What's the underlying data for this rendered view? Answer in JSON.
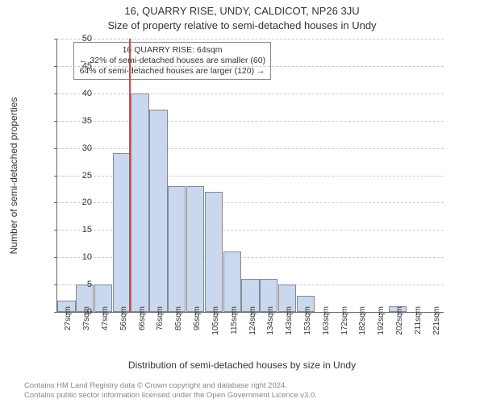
{
  "titles": {
    "line1": "16, QUARRY RISE, UNDY, CALDICOT, NP26 3JU",
    "line2": "Size of property relative to semi-detached houses in Undy"
  },
  "axes": {
    "ylabel": "Number of semi-detached properties",
    "xlabel": "Distribution of semi-detached houses by size in Undy",
    "ylim": [
      0,
      50
    ],
    "yticks": [
      0,
      5,
      10,
      15,
      20,
      25,
      30,
      35,
      40,
      45,
      50
    ],
    "grid_color": "#cccccc",
    "axis_color": "#666666"
  },
  "chart": {
    "type": "histogram",
    "bar_color": "#c9d7ef",
    "bar_border": "#888888",
    "background_color": "#ffffff",
    "categories": [
      "27sqm",
      "37sqm",
      "47sqm",
      "56sqm",
      "66sqm",
      "76sqm",
      "85sqm",
      "95sqm",
      "105sqm",
      "115sqm",
      "124sqm",
      "134sqm",
      "143sqm",
      "153sqm",
      "163sqm",
      "172sqm",
      "182sqm",
      "192sqm",
      "202sqm",
      "211sqm",
      "221sqm"
    ],
    "values": [
      2,
      5,
      5,
      29,
      40,
      37,
      23,
      23,
      22,
      11,
      6,
      6,
      5,
      3,
      0,
      0,
      0,
      0,
      1,
      0,
      0
    ]
  },
  "reference": {
    "sqm": 64,
    "color": "#d94545",
    "annot_line1": "16 QUARRY RISE: 64sqm",
    "annot_line2": "← 32% of semi-detached houses are smaller (60)",
    "annot_line3": "64% of semi-detached houses are larger (120) →"
  },
  "footer": {
    "line1": "Contains HM Land Registry data © Crown copyright and database right 2024.",
    "line2": "Contains public sector information licensed under the Open Government Licence v3.0."
  },
  "style": {
    "title_fontsize": 13,
    "label_fontsize": 12,
    "tick_fontsize": 11,
    "xtick_fontsize": 10,
    "annot_fontsize": 10.5,
    "footer_fontsize": 9.5,
    "footer_color": "#888888",
    "text_color": "#333333"
  }
}
